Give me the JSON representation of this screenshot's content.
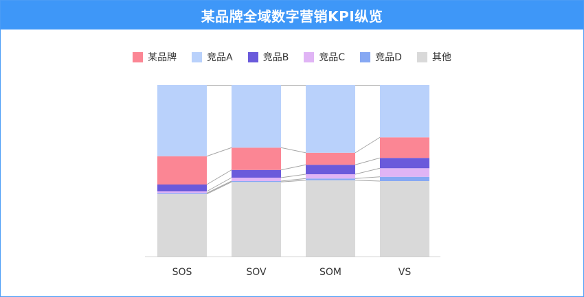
{
  "header": {
    "title": "某品牌全域数字营销KPI纵览"
  },
  "chart_data": {
    "type": "bar",
    "stacked": true,
    "percent_stacked": true,
    "title": "某品牌全域数字营销KPI纵览",
    "categories": [
      "SOS",
      "SOV",
      "SOM",
      "VS"
    ],
    "ylim": [
      0,
      100
    ],
    "grid": false,
    "legend_position": "top",
    "series": [
      {
        "name": "其他",
        "color": "#d9d9d9",
        "values": [
          36.5,
          43.5,
          44.5,
          44.0
        ]
      },
      {
        "name": "竞品D",
        "color": "#86a8f3",
        "values": [
          0.5,
          0.5,
          1.0,
          2.5
        ]
      },
      {
        "name": "竞品C",
        "color": "#e0b4f5",
        "values": [
          1.0,
          2.0,
          2.5,
          5.0
        ]
      },
      {
        "name": "竞品B",
        "color": "#6a5adb",
        "values": [
          4.0,
          4.5,
          5.5,
          6.0
        ]
      },
      {
        "name": "某品牌",
        "color": "#fb8694",
        "values": [
          16.5,
          13.0,
          7.0,
          12.0
        ]
      },
      {
        "name": "竞品A",
        "color": "#b9d1fb",
        "values": [
          41.5,
          36.5,
          39.5,
          30.5
        ]
      }
    ]
  },
  "legend": [
    {
      "label": "某品牌",
      "color": "#fb8694"
    },
    {
      "label": "竞品A",
      "color": "#b9d1fb"
    },
    {
      "label": "竞品B",
      "color": "#6a5adb"
    },
    {
      "label": "竞品C",
      "color": "#e0b4f5"
    },
    {
      "label": "竞品D",
      "color": "#86a8f3"
    },
    {
      "label": "其他",
      "color": "#d9d9d9"
    }
  ]
}
